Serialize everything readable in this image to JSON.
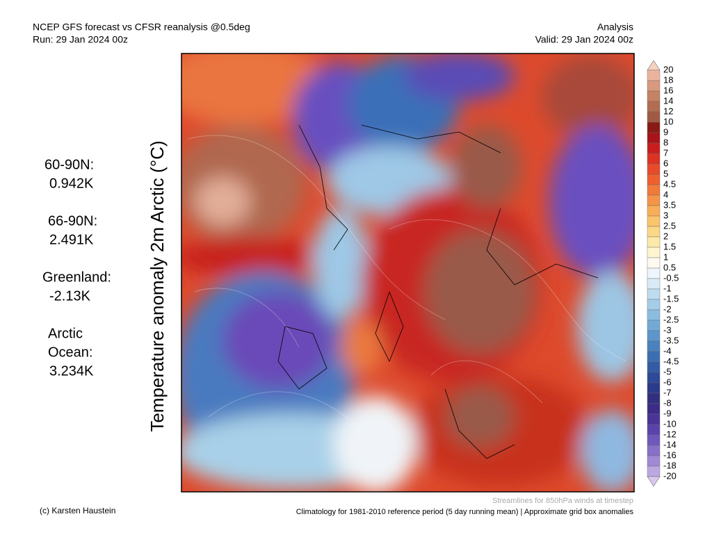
{
  "header": {
    "title_left": "NCEP GFS forecast vs CFSR reanalysis @0.5deg",
    "run": "Run: 29 Jan 2024 00z",
    "title_right": "Analysis",
    "valid": "Valid: 29 Jan 2024 00z"
  },
  "y_label": "Temperature anomaly 2m Arctic (°C)",
  "stats": [
    {
      "label": [
        "60-90N:"
      ],
      "value": "0.942K"
    },
    {
      "label": [
        "66-90N:"
      ],
      "value": "2.491K"
    },
    {
      "label": [
        "Greenland:"
      ],
      "value": "-2.13K"
    },
    {
      "label": [
        "Arctic",
        "Ocean:"
      ],
      "value": "3.234K"
    }
  ],
  "colorbar": {
    "labels": [
      "20",
      "18",
      "16",
      "14",
      "12",
      "10",
      "9",
      "8",
      "7",
      "6",
      "5",
      "4.5",
      "4",
      "3.5",
      "3",
      "2.5",
      "2",
      "1.5",
      "1",
      "0.5",
      "-0.5",
      "-1",
      "-1.5",
      "-2",
      "-2.5",
      "-3",
      "-3.5",
      "-4",
      "-4.5",
      "-5",
      "-6",
      "-7",
      "-8",
      "-9",
      "-10",
      "-12",
      "-14",
      "-16",
      "-18",
      "-20"
    ],
    "colors": [
      "#f7d0c0",
      "#ebb39e",
      "#d9997e",
      "#c68264",
      "#b36d52",
      "#a15a44",
      "#8a1a14",
      "#a8141a",
      "#c81e1e",
      "#dc3224",
      "#e84a2a",
      "#ee6030",
      "#f27a3a",
      "#f59448",
      "#f8ae58",
      "#fac46c",
      "#fbd888",
      "#fce8a8",
      "#fdf4d0",
      "#fffaf0",
      "#eef5fb",
      "#d8eaf6",
      "#bedcef",
      "#a4cde8",
      "#8abde0",
      "#72aad6",
      "#5c96cb",
      "#4a82bf",
      "#3c6fb2",
      "#335ca6",
      "#2c4a98",
      "#2c3a8a",
      "#32307e",
      "#3c2c88",
      "#4a3498",
      "#5a44ac",
      "#6e58bc",
      "#8670c8",
      "#a08ad4",
      "#bca8e0",
      "#d8c8ee"
    ]
  },
  "footer": {
    "credit": "(c) Karsten Haustein",
    "streamlines": "Streamlines for 850hPa winds at timestep",
    "climatology": "Climatology for 1981-2010 reference period (5 day running mean) | Approximate grid box anomalies"
  }
}
